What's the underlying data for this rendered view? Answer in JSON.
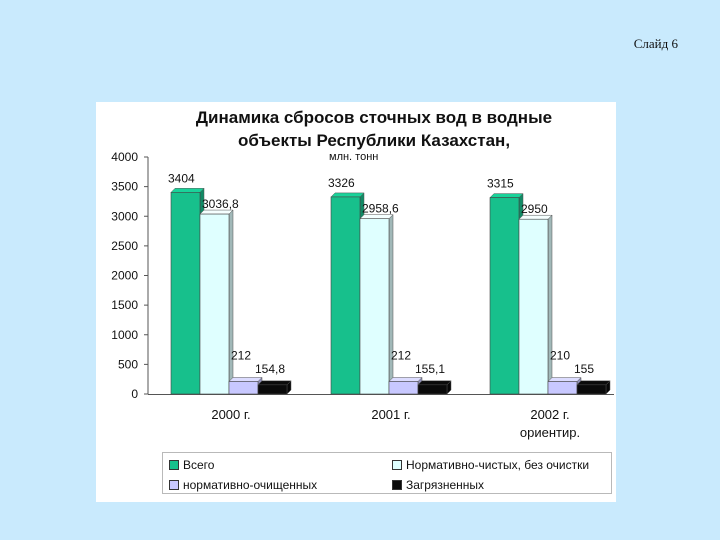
{
  "slide_label": "Слайд 6",
  "chart_data": {
    "type": "bar",
    "title_lines": [
      "Динамика сбросов сточных вод в водные",
      "объекты  Республики Казахстан,"
    ],
    "unit": "млн. тонн",
    "categories": [
      "2000 г.",
      "2001 г.",
      "2002 г."
    ],
    "category_sublabels": [
      "",
      "",
      "ориентир."
    ],
    "ylim": [
      0,
      4000
    ],
    "yticks": [
      0,
      500,
      1000,
      1500,
      2000,
      2500,
      3000,
      3500,
      4000
    ],
    "grid": false,
    "legend_position": "bottom",
    "series": [
      {
        "name": "Всего",
        "color": "#17c08c",
        "values": [
          3404,
          3326,
          3315
        ],
        "labels": [
          "3404",
          "3326",
          "3315"
        ]
      },
      {
        "name": "Нормативно-чистых, без очистки",
        "color": "#dfffff",
        "values": [
          3036.8,
          2958.6,
          2950
        ],
        "labels": [
          "3036,8",
          "2958,6",
          "2950"
        ]
      },
      {
        "name": "нормативно-очищенных",
        "color": "#c8c8ff",
        "values": [
          212,
          212,
          210
        ],
        "labels": [
          "212",
          "212",
          "210"
        ]
      },
      {
        "name": "Загрязненных",
        "color": "#0a0a0a",
        "values": [
          154.8,
          155.1,
          155
        ],
        "labels": [
          "154,8",
          "155,1",
          "155"
        ]
      }
    ]
  }
}
